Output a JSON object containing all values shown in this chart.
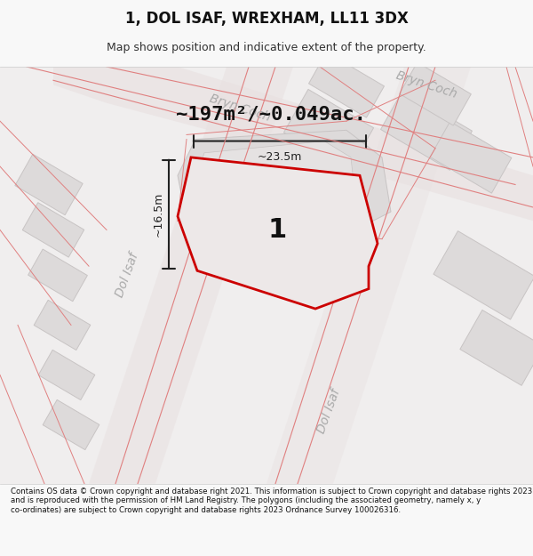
{
  "title": "1, DOL ISAF, WREXHAM, LL11 3DX",
  "subtitle": "Map shows position and indicative extent of the property.",
  "footer": "Contains OS data © Crown copyright and database right 2021. This information is subject to Crown copyright and database rights 2023 and is reproduced with the permission of HM Land Registry. The polygons (including the associated geometry, namely x, y co-ordinates) are subject to Crown copyright and database rights 2023 Ordnance Survey 100026316.",
  "area_text": "~197m²/~0.049ac.",
  "width_text": "~23.5m",
  "height_text": "~16.5m",
  "label_1": "1",
  "bg_color": "#f5f5f5",
  "map_bg": "#f0eeee",
  "road_color_light": "#e8c8c8",
  "road_color_dark": "#c8a8a8",
  "building_fill": "#e0dede",
  "building_stroke": "#c8c8c8",
  "highlight_fill": "#e8e0e0",
  "highlight_stroke": "#cc0000",
  "street_label_color": "#aaaaaa",
  "dim_color": "#222222",
  "title_color": "#111111",
  "map_area": [
    0.0,
    0.08,
    1.0,
    0.82
  ]
}
